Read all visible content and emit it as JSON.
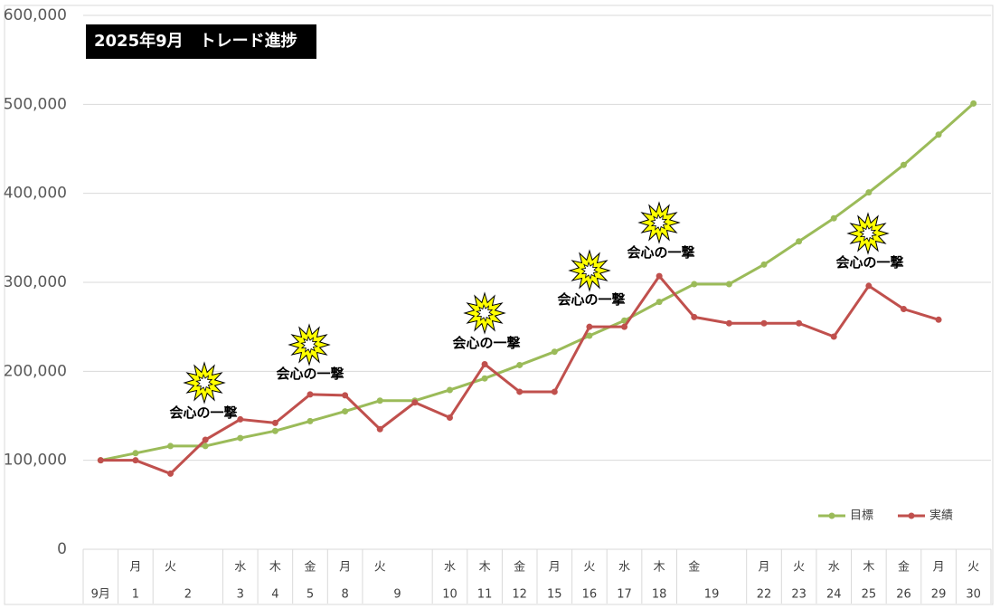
{
  "chart_data": {
    "type": "line",
    "title": "2025年9月　トレード進捗",
    "weekdays": [
      null,
      "月",
      "火",
      null,
      "水",
      "木",
      "金",
      "月",
      "火",
      null,
      "水",
      "木",
      "金",
      "月",
      "火",
      "水",
      "木",
      "金",
      null,
      "月",
      "火",
      "水",
      "木",
      "金",
      "月",
      "火"
    ],
    "categories": [
      "9月",
      "1",
      "2",
      null,
      "3",
      "4",
      "5",
      "8",
      "9",
      null,
      "10",
      "11",
      "12",
      "15",
      "16",
      "17",
      "18",
      "19",
      null,
      "22",
      "23",
      "24",
      "25",
      "26",
      "29",
      "30"
    ],
    "series": [
      {
        "name": "目標",
        "color": "#9bbb59",
        "values": [
          100000,
          108000,
          116000,
          116000,
          125000,
          133000,
          144000,
          155000,
          167000,
          167000,
          179000,
          192000,
          207000,
          222000,
          240000,
          257000,
          278000,
          298000,
          298000,
          320000,
          346000,
          372000,
          401000,
          432000,
          466000,
          501000
        ]
      },
      {
        "name": "実績",
        "color": "#c0504d",
        "values": [
          100000,
          100000,
          85000,
          123000,
          146000,
          142000,
          174000,
          173000,
          135000,
          165000,
          148000,
          208000,
          177000,
          177000,
          250000,
          250000,
          307000,
          261000,
          254000,
          254000,
          254000,
          239000,
          296000,
          270000,
          258000,
          null
        ]
      }
    ],
    "ylim": [
      0,
      600000
    ],
    "yticks": [
      0,
      {
        "value": 100000,
        "label": "100,000"
      },
      {
        "value": 200000,
        "label": "200,000"
      },
      {
        "value": 300000,
        "label": "300,000"
      },
      {
        "value": 400000,
        "label": "400,000"
      },
      {
        "value": 500000,
        "label": "500,000"
      },
      {
        "value": 600000,
        "label": "600,000"
      }
    ],
    "grid": true,
    "legend": "bottom-right",
    "annotations": [
      "会心の一撃",
      "会心の一撃",
      "会心の一撃",
      "会心の一撃",
      "会心の一撃",
      "会心の一撃"
    ]
  }
}
